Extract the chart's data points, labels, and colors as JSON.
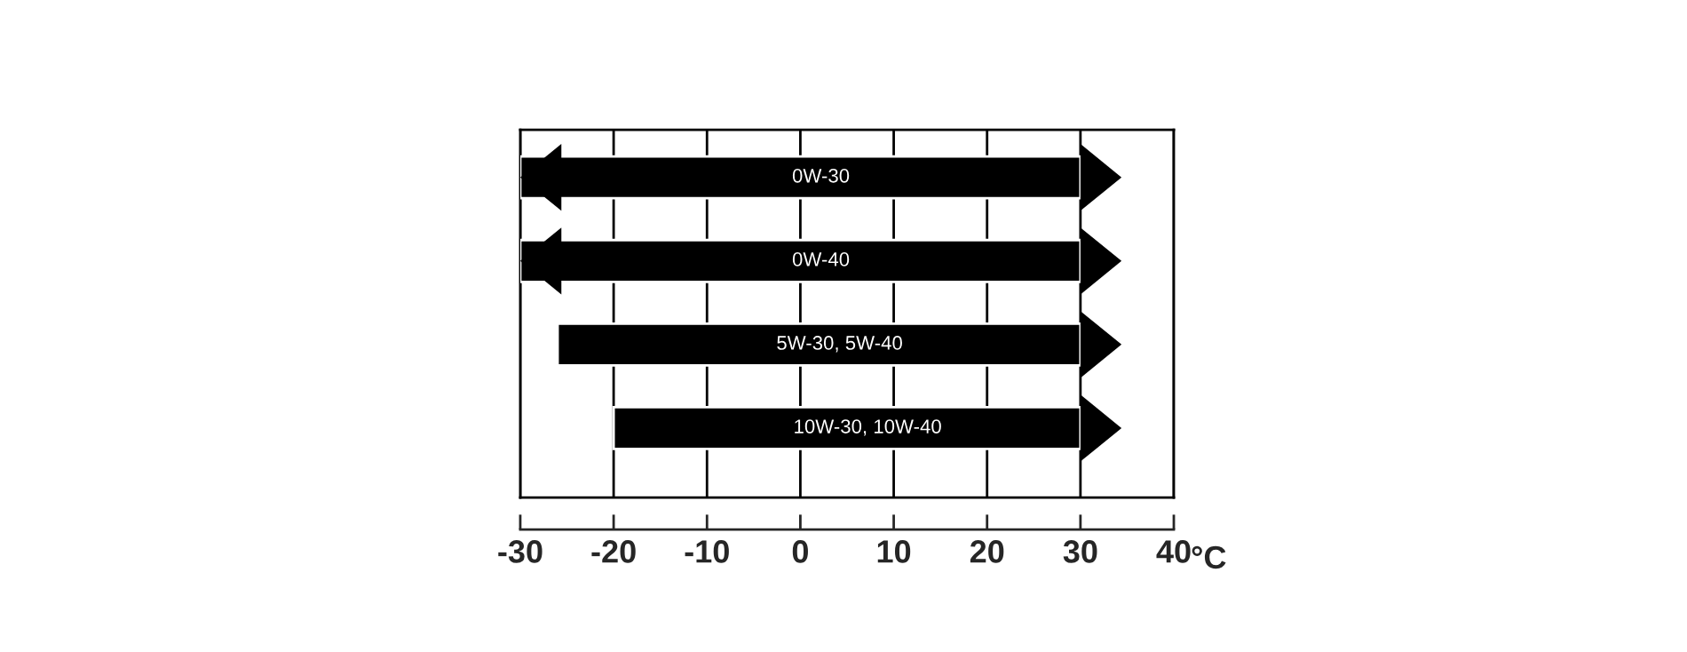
{
  "chart_data": {
    "type": "bar",
    "orientation": "horizontal",
    "categories": [
      "0W-30",
      "0W-40",
      "5W-30, 5W-40",
      "10W-30, 10W-40"
    ],
    "base": [
      -30,
      -30,
      -26,
      -20
    ],
    "values": [
      60,
      60,
      56,
      50
    ],
    "color": "#000000",
    "xlim": [
      -30,
      40
    ],
    "xticks": [
      -30,
      -20,
      -10,
      0,
      10,
      20,
      30,
      40
    ],
    "xlabel": "°C",
    "grid": "x",
    "tick_labels": "x"
  }
}
